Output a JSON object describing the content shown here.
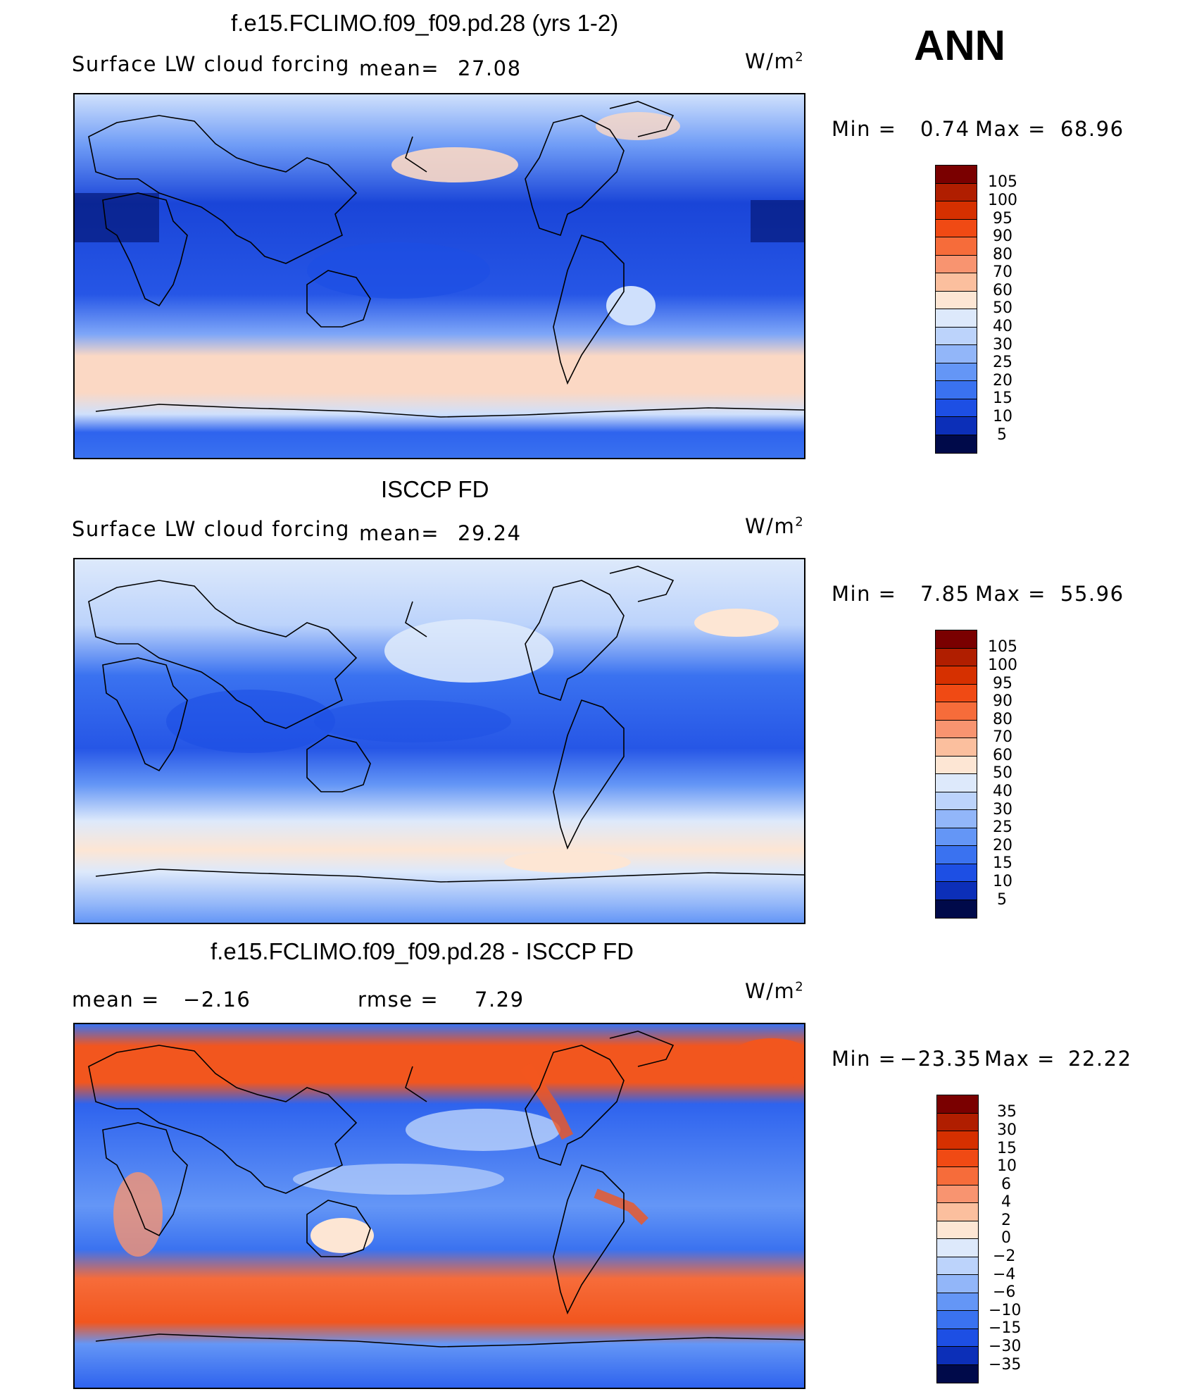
{
  "season": "ANN",
  "panels": [
    {
      "title": "f.e15.FCLIMO.f09_f09.pd.28 (yrs 1-2)",
      "variable": "Surface LW cloud forcing",
      "stat1_label": "mean=",
      "stat1_value": "27.08",
      "units": "W/m",
      "units_exp": "2",
      "min_label": "Min  =",
      "min_value": "0.74",
      "max_label": "Max  =",
      "max_value": "68.96",
      "levels": [
        "105",
        "100",
        "95",
        "90",
        "80",
        "70",
        "60",
        "50",
        "40",
        "30",
        "25",
        "20",
        "15",
        "10",
        "5"
      ]
    },
    {
      "title": "ISCCP FD",
      "variable": "Surface LW cloud forcing",
      "stat1_label": "mean=",
      "stat1_value": "29.24",
      "units": "W/m",
      "units_exp": "2",
      "min_label": "Min  =",
      "min_value": "7.85",
      "max_label": "Max  =",
      "max_value": "55.96",
      "levels": [
        "105",
        "100",
        "95",
        "90",
        "80",
        "70",
        "60",
        "50",
        "40",
        "30",
        "25",
        "20",
        "15",
        "10",
        "5"
      ]
    },
    {
      "title": "f.e15.FCLIMO.f09_f09.pd.28 - ISCCP FD",
      "mean_label": "mean  =",
      "mean_value": "−2.16",
      "rmse_label": "rmse  =",
      "rmse_value": "7.29",
      "units": "W/m",
      "units_exp": "2",
      "min_label": "Min  =",
      "min_value": "−23.35",
      "max_label": "Max  =",
      "max_value": "22.22",
      "levels": [
        "35",
        "30",
        "15",
        "10",
        "6",
        "4",
        "2",
        "0",
        "−2",
        "−4",
        "−6",
        "−10",
        "−15",
        "−30",
        "−35"
      ]
    }
  ],
  "colors": {
    "colorbar": [
      "#7a0000",
      "#b01e00",
      "#d63000",
      "#f04a14",
      "#f66c3a",
      "#f89470",
      "#fbbf9e",
      "#fde6d4",
      "#dde9fb",
      "#bcd3fb",
      "#92b6f9",
      "#6496f6",
      "#3a72f0",
      "#1d4fe4",
      "#0c2fb8",
      "#041877",
      "#000a4a"
    ],
    "ocean_low": "#1a45d8",
    "ocean_mid": "#5a8cf5",
    "ocean_high": "#cfe0fc",
    "warm_band": "#fbd8c4",
    "diff_pos": "#f2561e",
    "diff_neg": "#2e63ee",
    "coast": "#000000"
  }
}
